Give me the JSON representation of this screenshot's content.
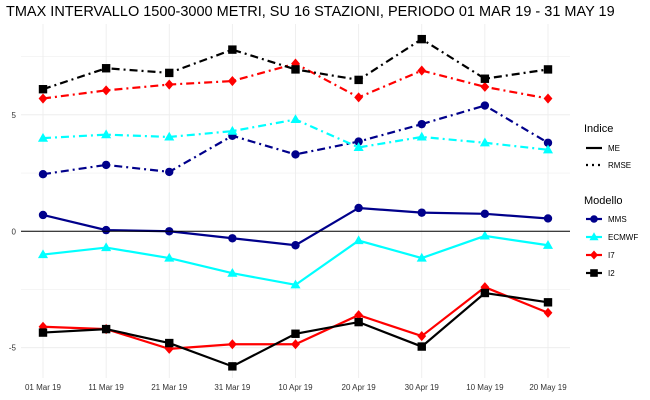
{
  "chart_data": {
    "type": "line",
    "title": "TMAX INTERVALLO 1500-3000 METRI, SU 16 STAZIONI, PERIODO 01 MAR 19  -  31 MAY 19",
    "xlabel": "",
    "ylabel": "",
    "categories": [
      "01 Mar 19",
      "11 Mar 19",
      "21 Mar 19",
      "31 Mar 19",
      "10 Apr 19",
      "20 Apr 19",
      "30 Apr 19",
      "10 May 19",
      "20 May 19"
    ],
    "y_ticks": [
      -5,
      0,
      5
    ],
    "ylim": [
      -6.3,
      8.9
    ],
    "grid": true,
    "legend_position": "right",
    "legend": {
      "indice_title": "Indice",
      "indice_entries": [
        {
          "label": "ME",
          "linestyle": "solid"
        },
        {
          "label": "RMSE",
          "linestyle": "dashdot"
        }
      ],
      "modello_title": "Modello",
      "modello_entries": [
        {
          "label": "MMS",
          "color": "#00008b",
          "marker": "circle"
        },
        {
          "label": "ECMWF",
          "color": "#00ffff",
          "marker": "triangle"
        },
        {
          "label": "I7",
          "color": "#ff0000",
          "marker": "diamond"
        },
        {
          "label": "I2",
          "color": "#000000",
          "marker": "square"
        }
      ]
    },
    "series": [
      {
        "name": "MMS",
        "indice": "ME",
        "color": "#00008b",
        "marker": "circle",
        "values": [
          0.7,
          0.05,
          0.0,
          -0.3,
          -0.6,
          1.0,
          0.8,
          0.75,
          0.55
        ]
      },
      {
        "name": "ECMWF",
        "indice": "ME",
        "color": "#00ffff",
        "marker": "triangle",
        "values": [
          -1.0,
          -0.7,
          -1.15,
          -1.8,
          -2.3,
          -0.4,
          -1.15,
          -0.2,
          -0.6
        ]
      },
      {
        "name": "I7",
        "indice": "ME",
        "color": "#ff0000",
        "marker": "diamond",
        "values": [
          -4.1,
          -4.2,
          -5.05,
          -4.85,
          -4.85,
          -3.6,
          -4.5,
          -2.4,
          -3.5
        ]
      },
      {
        "name": "I2",
        "indice": "ME",
        "color": "#000000",
        "marker": "square",
        "values": [
          -4.35,
          -4.2,
          -4.8,
          -5.8,
          -4.4,
          -3.9,
          -4.95,
          -2.65,
          -3.05
        ]
      },
      {
        "name": "MMS",
        "indice": "RMSE",
        "color": "#00008b",
        "marker": "circle",
        "values": [
          2.45,
          2.85,
          2.55,
          4.1,
          3.3,
          3.85,
          4.6,
          5.4,
          3.8
        ]
      },
      {
        "name": "ECMWF",
        "indice": "RMSE",
        "color": "#00ffff",
        "marker": "triangle",
        "values": [
          4.0,
          4.15,
          4.05,
          4.3,
          4.8,
          3.6,
          4.05,
          3.8,
          3.5
        ]
      },
      {
        "name": "I7",
        "indice": "RMSE",
        "color": "#ff0000",
        "marker": "diamond",
        "values": [
          5.7,
          6.05,
          6.3,
          6.45,
          7.2,
          5.75,
          6.9,
          6.2,
          5.7
        ]
      },
      {
        "name": "I2",
        "indice": "RMSE",
        "color": "#000000",
        "marker": "square",
        "values": [
          6.1,
          7.0,
          6.8,
          7.8,
          6.95,
          6.5,
          8.25,
          6.55,
          6.95
        ]
      }
    ]
  }
}
